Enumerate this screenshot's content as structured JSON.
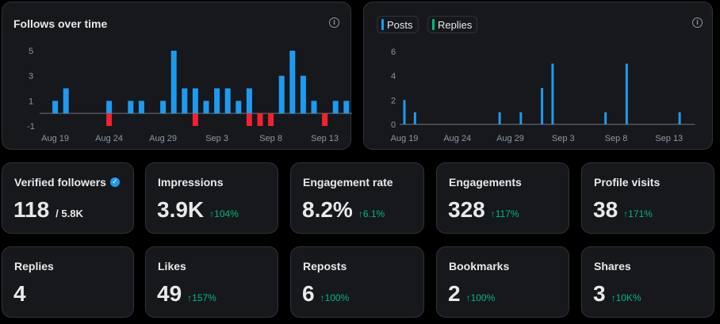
{
  "colors": {
    "background": "#000000",
    "card": "#16181c",
    "border": "#2f3336",
    "blue": "#1d9bf0",
    "red": "#f4212e",
    "green": "#00ba7c",
    "muted": "#8b98a5"
  },
  "icons": {
    "info": "info-icon",
    "verified": "verified-badge-icon",
    "up_arrow": "up-arrow-icon"
  },
  "chart_data": [
    {
      "type": "bar",
      "title": "Follows over time",
      "y_ticks": [
        "5",
        "3",
        "1",
        "-1"
      ],
      "x_tick_labels": [
        "Aug 19",
        "Aug 24",
        "Aug 29",
        "Sep 3",
        "Sep 8",
        "Sep 13"
      ],
      "x_tick_index": [
        1,
        6,
        11,
        16,
        21,
        26
      ],
      "ylim": [
        -1,
        5
      ],
      "series": [
        {
          "values": [
            0,
            1,
            2,
            0,
            0,
            0,
            1,
            0,
            1,
            1,
            0,
            1,
            5,
            2,
            2,
            1,
            2,
            2,
            1,
            2,
            0,
            0,
            3,
            5,
            3,
            1,
            0,
            1,
            1,
            1
          ]
        },
        {
          "values": [
            0,
            0,
            0,
            0,
            0,
            0,
            -1,
            0,
            0,
            0,
            0,
            0,
            0,
            0,
            -1,
            0,
            0,
            0,
            0,
            -1,
            -1,
            -1,
            0,
            0,
            0,
            0,
            -1,
            0,
            0,
            0
          ]
        }
      ]
    },
    {
      "type": "bar",
      "legend": [
        "Posts",
        "Replies"
      ],
      "y_ticks": [
        "6",
        "4",
        "2",
        "0"
      ],
      "x_tick_labels": [
        "Aug 19",
        "Aug 24",
        "Aug 29",
        "Sep 3",
        "Sep 8",
        "Sep 13"
      ],
      "x_tick_index": [
        0,
        5,
        10,
        15,
        20,
        25
      ],
      "ylim": [
        0,
        6
      ],
      "series": [
        {
          "name": "Posts",
          "values": [
            2,
            1,
            0,
            0,
            0,
            0,
            0,
            0,
            0,
            1,
            0,
            1,
            0,
            3,
            5,
            0,
            0,
            0,
            0,
            1,
            0,
            5,
            0,
            0,
            0,
            0,
            1,
            0
          ]
        },
        {
          "name": "Replies",
          "values": [
            0,
            0,
            0,
            0,
            0,
            0,
            0,
            0,
            0,
            0,
            0,
            0,
            0,
            0,
            0,
            0,
            0,
            0,
            0,
            0,
            0,
            0,
            0,
            0,
            0,
            0,
            0,
            0
          ]
        }
      ]
    }
  ],
  "stats_row1": [
    {
      "label": "Verified followers",
      "value": "118",
      "sub": "/ 5.8K",
      "change": ""
    },
    {
      "label": "Impressions",
      "value": "3.9K",
      "sub": "",
      "change": "104%"
    },
    {
      "label": "Engagement rate",
      "value": "8.2%",
      "sub": "",
      "change": "6.1%"
    },
    {
      "label": "Engagements",
      "value": "328",
      "sub": "",
      "change": "117%"
    },
    {
      "label": "Profile visits",
      "value": "38",
      "sub": "",
      "change": "171%"
    }
  ],
  "stats_row2": [
    {
      "label": "Replies",
      "value": "4",
      "sub": "",
      "change": ""
    },
    {
      "label": "Likes",
      "value": "49",
      "sub": "",
      "change": "157%"
    },
    {
      "label": "Reposts",
      "value": "6",
      "sub": "",
      "change": "100%"
    },
    {
      "label": "Bookmarks",
      "value": "2",
      "sub": "",
      "change": "100%"
    },
    {
      "label": "Shares",
      "value": "3",
      "sub": "",
      "change": "10K%"
    }
  ]
}
